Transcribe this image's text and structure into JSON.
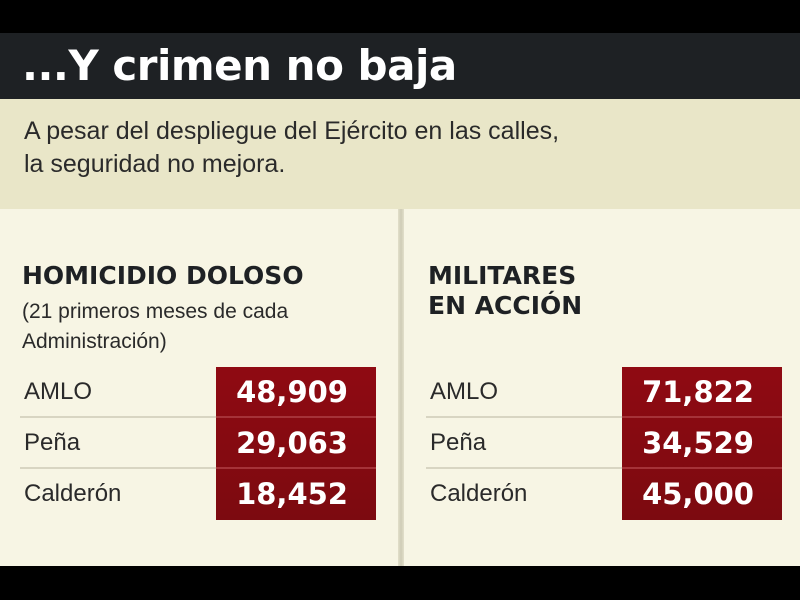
{
  "header": {
    "title": "...Y crimen no baja",
    "subtitle_line1": "A pesar del despliegue del Ejército en las calles,",
    "subtitle_line2": "la seguridad no mejora."
  },
  "colors": {
    "title_bar": "#1e2124",
    "subtitle_band": "#e9e6c8",
    "panel_bg": "#f7f5e4",
    "value_cell": "#8f0a12",
    "value_text": "#ffffff"
  },
  "chart_data": [
    {
      "type": "table",
      "title_line1": "HOMICIDIO DOLOSO",
      "note_line1": "(21 primeros meses de cada",
      "note_line2": "Administración)",
      "categories": [
        "AMLO",
        "Peña",
        "Calderón"
      ],
      "values": [
        48909,
        29063,
        18452
      ],
      "value_labels": [
        "48,909",
        "29,063",
        "18,452"
      ]
    },
    {
      "type": "table",
      "title_line1": "MILITARES",
      "title_line2": "EN ACCIÓN",
      "categories": [
        "AMLO",
        "Peña",
        "Calderón"
      ],
      "values": [
        71822,
        34529,
        45000
      ],
      "value_labels": [
        "71,822",
        "34,529",
        "45,000"
      ]
    }
  ]
}
